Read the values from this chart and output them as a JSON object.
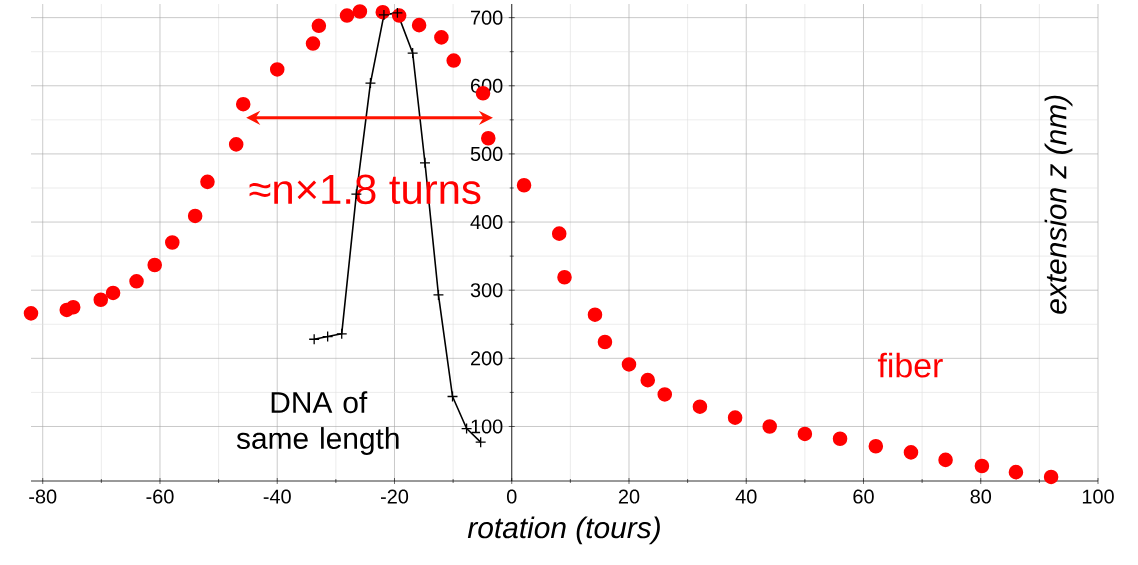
{
  "chart_data": {
    "type": "scatter",
    "xlabel": "rotation (tours)",
    "ylabel": "extension z (nm)",
    "xlim": [
      -82,
      100
    ],
    "ylim": [
      20,
      720
    ],
    "xticks": [
      -80,
      -60,
      -40,
      -20,
      0,
      20,
      40,
      60,
      80,
      100
    ],
    "yticks": [
      100,
      200,
      300,
      400,
      500,
      600,
      700
    ],
    "grid": true,
    "annotations": [
      "≈n×1.8 turns"
    ],
    "series": [
      {
        "name": "fiber",
        "color": "#ff0000",
        "marker": "circle",
        "x": [
          -82.0,
          -75.9,
          -74.8,
          -70.1,
          -68.0,
          -64.0,
          -60.9,
          -57.9,
          -54.0,
          -51.9,
          -47.0,
          -45.8,
          -40.0,
          -33.9,
          -32.9,
          -28.1,
          -25.9,
          -22.0,
          -19.2,
          -15.8,
          -12.0,
          -9.9,
          -4.9,
          -4.0,
          2.1,
          8.1,
          9.0,
          14.2,
          15.9,
          20.0,
          23.2,
          26.1,
          32.1,
          38.1,
          44.0,
          50.0,
          56.0,
          62.1,
          68.1,
          74.0,
          80.2,
          86.0,
          92.0
        ],
        "values": [
          266,
          271,
          275,
          286,
          296,
          313,
          337,
          370,
          409,
          459,
          514,
          573,
          624,
          662,
          688,
          703,
          709,
          708,
          703,
          689,
          671,
          637,
          589,
          523,
          454,
          383,
          319,
          264,
          224,
          191,
          168,
          147,
          129,
          113,
          100,
          89,
          82,
          71,
          62,
          51,
          42,
          33,
          26
        ]
      },
      {
        "name": "DNA of same length",
        "type": "line",
        "color": "#000000",
        "marker": "cross",
        "line_style": "solid",
        "x": [
          -33.7,
          -31.4,
          -29.0,
          -26.5,
          -24.1,
          -21.8,
          -19.5,
          -16.9,
          -14.8,
          -12.5,
          -10.1,
          -7.7,
          -5.3
        ],
        "values": [
          228,
          232,
          236,
          441,
          604,
          704,
          707,
          648,
          487,
          293,
          144,
          97,
          77
        ]
      }
    ]
  }
}
